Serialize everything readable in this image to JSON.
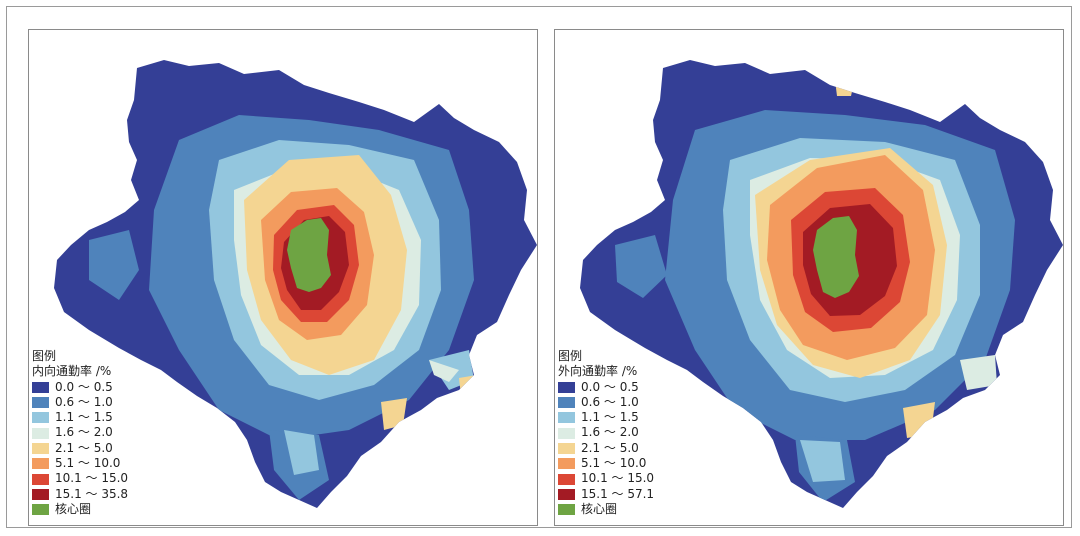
{
  "panels": [
    {
      "id": "inbound",
      "legend_title": "图例",
      "legend_subtitle": "内向通勤率 /%",
      "classes": [
        {
          "label": "0.0 ～ 0.5",
          "color": "#343f96"
        },
        {
          "label": "0.6 ～ 1.0",
          "color": "#4f83bb"
        },
        {
          "label": "1.1 ～ 1.5",
          "color": "#93c6de"
        },
        {
          "label": "1.6 ～ 2.0",
          "color": "#dcece3"
        },
        {
          "label": "2.1 ～ 5.0",
          "color": "#f4d592"
        },
        {
          "label": "5.1 ～ 10.0",
          "color": "#f39b5e"
        },
        {
          "label": "10.1 ～ 15.0",
          "color": "#dc4735"
        },
        {
          "label": "15.1 ～ 35.8",
          "color": "#a31b24"
        },
        {
          "label": "核心圈",
          "color": "#6ea443"
        }
      ]
    },
    {
      "id": "outbound",
      "legend_title": "图例",
      "legend_subtitle": "外向通勤率 /%",
      "classes": [
        {
          "label": "0.0 ～ 0.5",
          "color": "#343f96"
        },
        {
          "label": "0.6 ～ 1.0",
          "color": "#4f83bb"
        },
        {
          "label": "1.1 ～ 1.5",
          "color": "#93c6de"
        },
        {
          "label": "1.6 ～ 2.0",
          "color": "#dcece3"
        },
        {
          "label": "2.1 ～ 5.0",
          "color": "#f4d592"
        },
        {
          "label": "5.1 ～ 10.0",
          "color": "#f39b5e"
        },
        {
          "label": "10.1 ～ 15.0",
          "color": "#dc4735"
        },
        {
          "label": "15.1 ～ 57.1",
          "color": "#a31b24"
        },
        {
          "label": "核心圈",
          "color": "#6ea443"
        }
      ]
    }
  ]
}
